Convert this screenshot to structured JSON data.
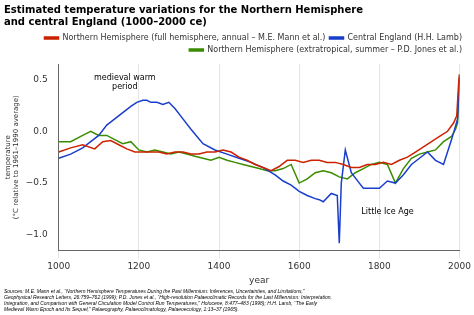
{
  "chart_data": {
    "type": "line",
    "title": "Estimated temperature variations for the Northern Hemisphere\nand central England (1000–2000 ce)",
    "x_label": "year",
    "y_label": "temperature\n(°C relative to 1961–1990 average)",
    "xlim": [
      1000,
      2000
    ],
    "ylim": [
      -1.15,
      0.65
    ],
    "xticks": [
      1000,
      1200,
      1400,
      1600,
      1800,
      2000
    ],
    "yticks": [
      {
        "value": -1.0,
        "label": "−1.0"
      },
      {
        "value": -0.5,
        "label": "−0.5"
      },
      {
        "value": 0.0,
        "label": "0.0"
      },
      {
        "value": 0.5,
        "label": "0.5"
      }
    ],
    "grid": "x",
    "legend": "upper right",
    "annotations": [
      {
        "text": "medieval warm\nperiod",
        "x": 1165,
        "y": 0.38
      },
      {
        "text": "Little Ice Age",
        "x": 1755,
        "y": -0.78
      }
    ],
    "source": "Sources: M.E. Mann et al., “Northern Hemisphere Temperatures During the Past Millennium: Inferences, Uncertainties, and Limitations,”\nGeophysical Research Letters, 26:759–762 (1999); P.D. Jones et al., “High-resolution Palaeoclimatic Records for the Last Millennium: Interpretation,\nIntegration, and Comparison with General Circulation Model Control Run Temperatures,” Holocene, 8:477–483 (1998); H.H. Lamb, “The Early\nMedieval Warm Epoch and Its Sequel,” Palaeography, Palaeoclimatology, Palaeoecology, 1:13–37 (1965).",
    "series": [
      {
        "name": "Northern Hemisphere (full hemisphere, annual – M.E. Mann et al.)",
        "color": "#cc2200",
        "x": [
          1000,
          1030,
          1060,
          1090,
          1110,
          1130,
          1150,
          1170,
          1190,
          1210,
          1230,
          1250,
          1270,
          1290,
          1310,
          1330,
          1350,
          1370,
          1390,
          1410,
          1430,
          1450,
          1470,
          1490,
          1510,
          1530,
          1550,
          1570,
          1590,
          1610,
          1630,
          1650,
          1670,
          1690,
          1710,
          1730,
          1750,
          1770,
          1790,
          1810,
          1830,
          1850,
          1870,
          1890,
          1910,
          1930,
          1950,
          1970,
          1985,
          1993,
          1998,
          2000
        ],
        "values": [
          -0.2,
          -0.16,
          -0.13,
          -0.17,
          -0.1,
          -0.09,
          -0.13,
          -0.17,
          -0.2,
          -0.2,
          -0.2,
          -0.2,
          -0.22,
          -0.2,
          -0.2,
          -0.22,
          -0.22,
          -0.2,
          -0.2,
          -0.18,
          -0.2,
          -0.25,
          -0.28,
          -0.32,
          -0.35,
          -0.38,
          -0.34,
          -0.28,
          -0.28,
          -0.3,
          -0.28,
          -0.28,
          -0.3,
          -0.3,
          -0.32,
          -0.35,
          -0.35,
          -0.32,
          -0.32,
          -0.3,
          -0.32,
          -0.28,
          -0.25,
          -0.2,
          -0.15,
          -0.1,
          -0.05,
          0.0,
          0.08,
          0.15,
          0.48,
          0.55
        ]
      },
      {
        "name": "Central England (H.H. Lamb)",
        "color": "#1a3ecc",
        "x": [
          1000,
          1030,
          1060,
          1080,
          1100,
          1120,
          1140,
          1160,
          1180,
          1195,
          1210,
          1220,
          1230,
          1245,
          1260,
          1275,
          1290,
          1310,
          1330,
          1360,
          1390,
          1420,
          1450,
          1480,
          1510,
          1540,
          1560,
          1580,
          1600,
          1620,
          1640,
          1650,
          1660,
          1680,
          1695,
          1700,
          1705,
          1715,
          1730,
          1750,
          1760,
          1780,
          1800,
          1820,
          1840,
          1860,
          1880,
          1900,
          1920,
          1940,
          1960,
          1980,
          1990,
          1995,
          2000
        ],
        "values": [
          -0.26,
          -0.22,
          -0.16,
          -0.1,
          -0.04,
          0.06,
          0.12,
          0.18,
          0.24,
          0.28,
          0.3,
          0.3,
          0.28,
          0.28,
          0.26,
          0.28,
          0.22,
          0.12,
          0.02,
          -0.12,
          -0.18,
          -0.22,
          -0.26,
          -0.3,
          -0.35,
          -0.42,
          -0.48,
          -0.52,
          -0.58,
          -0.62,
          -0.65,
          -0.66,
          -0.68,
          -0.6,
          -0.62,
          -1.08,
          -0.5,
          -0.18,
          -0.4,
          -0.5,
          -0.55,
          -0.55,
          -0.55,
          -0.48,
          -0.5,
          -0.42,
          -0.32,
          -0.26,
          -0.2,
          -0.28,
          -0.32,
          -0.08,
          0.05,
          0.12,
          0.52
        ]
      },
      {
        "name": "Northern Hemisphere (extratropical, summer – P.D. Jones et al.)",
        "color": "#3a8c00",
        "x": [
          1000,
          1030,
          1060,
          1080,
          1100,
          1120,
          1140,
          1160,
          1180,
          1200,
          1220,
          1240,
          1260,
          1280,
          1300,
          1320,
          1340,
          1360,
          1380,
          1400,
          1420,
          1440,
          1460,
          1480,
          1500,
          1520,
          1540,
          1560,
          1580,
          1600,
          1620,
          1640,
          1660,
          1680,
          1700,
          1720,
          1740,
          1760,
          1780,
          1800,
          1820,
          1840,
          1860,
          1880,
          1900,
          1920,
          1940,
          1960,
          1980,
          1990,
          1995,
          2000
        ],
        "values": [
          -0.1,
          -0.1,
          -0.04,
          0.0,
          -0.04,
          -0.04,
          -0.08,
          -0.12,
          -0.1,
          -0.18,
          -0.2,
          -0.18,
          -0.2,
          -0.22,
          -0.2,
          -0.22,
          -0.24,
          -0.26,
          -0.28,
          -0.25,
          -0.28,
          -0.3,
          -0.32,
          -0.34,
          -0.36,
          -0.38,
          -0.38,
          -0.36,
          -0.32,
          -0.5,
          -0.46,
          -0.4,
          -0.38,
          -0.4,
          -0.44,
          -0.46,
          -0.4,
          -0.36,
          -0.32,
          -0.3,
          -0.32,
          -0.5,
          -0.36,
          -0.26,
          -0.22,
          -0.2,
          -0.18,
          -0.1,
          -0.05,
          0.02,
          0.08,
          0.55
        ]
      }
    ]
  }
}
